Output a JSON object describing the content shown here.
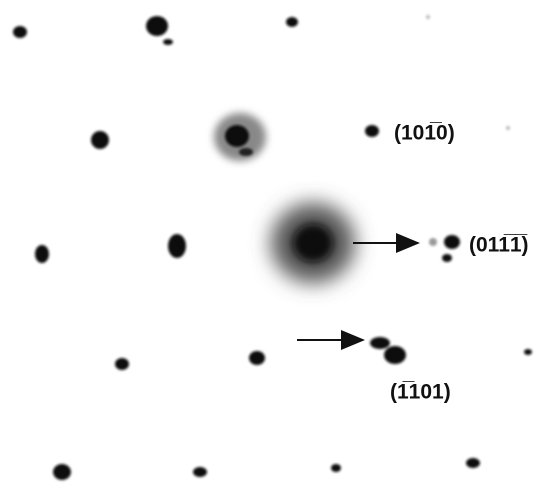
{
  "annotations": [
    {
      "label": "(101̅0)"
    },
    {
      "label": "(011̅1̅)"
    },
    {
      "label": "(1̅101)"
    }
  ]
}
